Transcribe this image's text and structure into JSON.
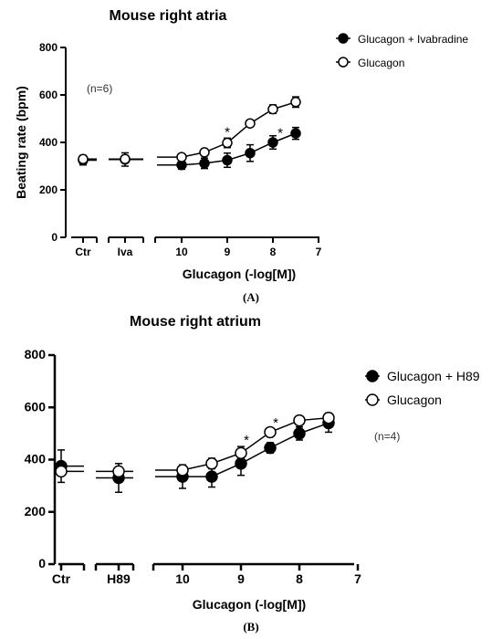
{
  "chart_data": [
    {
      "type": "line",
      "panel_label": "(A)",
      "title": "Mouse right atria",
      "xlabel": "Glucagon (-log[M])",
      "ylabel": "Beating rate (bpm)",
      "ylim": [
        0,
        800
      ],
      "yticks": [
        "0",
        "200",
        "400",
        "600",
        "800"
      ],
      "categories": [
        "Ctr",
        "Iva"
      ],
      "xticks": [
        "10",
        "9",
        "8",
        "7"
      ],
      "xlim": [
        10.5,
        7
      ],
      "n_label": "(n=6)",
      "significance_marker": "*",
      "significant_x": [
        9,
        8
      ],
      "series": [
        {
          "name": "Glucagon + Ivabradine",
          "marker": "filled",
          "control": {
            "value": 325,
            "error": 20
          },
          "drug": {
            "value": 328,
            "error": 28
          },
          "x": [
            10,
            9.5,
            9,
            8.5,
            8,
            7.5
          ],
          "values": [
            305,
            312,
            325,
            355,
            400,
            438
          ],
          "errors": [
            18,
            22,
            30,
            35,
            28,
            25
          ]
        },
        {
          "name": "Glucagon",
          "marker": "open",
          "control": {
            "value": 330,
            "error": 15
          },
          "drug": {
            "value": 330,
            "error": 15
          },
          "x": [
            10,
            9.5,
            9,
            8.5,
            8,
            7.5
          ],
          "values": [
            338,
            358,
            398,
            480,
            540,
            570
          ],
          "errors": [
            12,
            14,
            20,
            12,
            18,
            22
          ]
        }
      ]
    },
    {
      "type": "line",
      "panel_label": "(B)",
      "title": "Mouse right atrium",
      "xlabel": "Glucagon (-log[M])",
      "ylabel": "",
      "ylim": [
        0,
        800
      ],
      "yticks": [
        "0",
        "200",
        "400",
        "600",
        "800"
      ],
      "categories": [
        "Ctr",
        "H89"
      ],
      "xticks": [
        "10",
        "9",
        "8",
        "7"
      ],
      "xlim": [
        10.5,
        7
      ],
      "n_label": "(n=4)",
      "significance_marker": "*",
      "significant_x": [
        9,
        8.5
      ],
      "series": [
        {
          "name": "Glucagon + H89",
          "marker": "filled",
          "control": {
            "value": 375,
            "error": 62
          },
          "drug": {
            "value": 330,
            "error": 55
          },
          "x": [
            10,
            9.5,
            9,
            8.5,
            8,
            7.5
          ],
          "values": [
            335,
            335,
            385,
            445,
            500,
            540
          ],
          "errors": [
            45,
            40,
            45,
            20,
            25,
            35
          ]
        },
        {
          "name": "Glucagon",
          "marker": "open",
          "control": {
            "value": 355,
            "error": 15
          },
          "drug": {
            "value": 355,
            "error": 15
          },
          "x": [
            10,
            9.5,
            9,
            8.5,
            8,
            7.5
          ],
          "values": [
            360,
            385,
            425,
            505,
            550,
            560
          ],
          "errors": [
            20,
            20,
            25,
            12,
            10,
            18
          ]
        }
      ]
    }
  ]
}
